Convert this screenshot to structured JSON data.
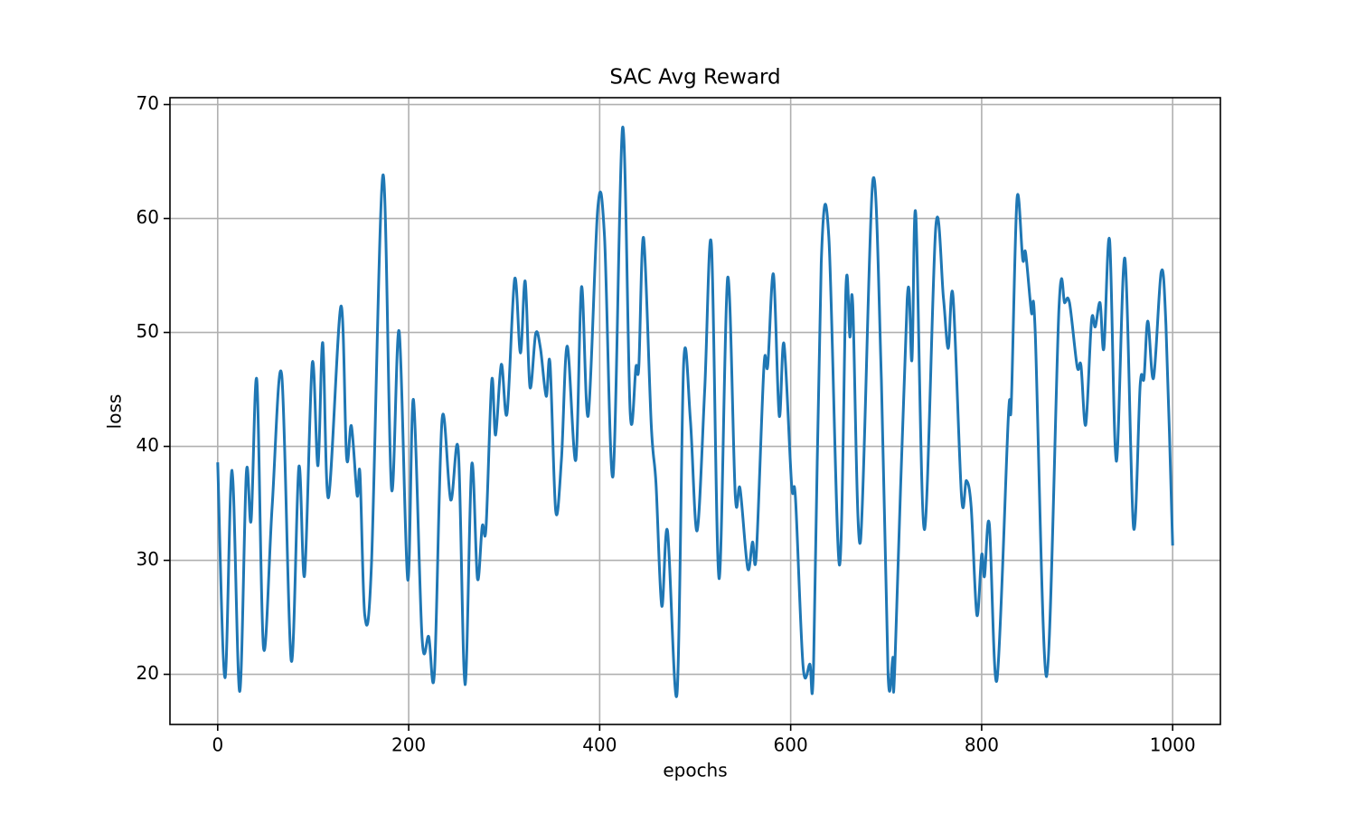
{
  "chart_data": {
    "type": "line",
    "title": "SAC Avg Reward",
    "x_label": "epochs",
    "y_label": "loss",
    "xlim": [
      -50,
      1050
    ],
    "ylim": [
      15.6,
      70.6
    ],
    "xticks": [
      0,
      200,
      400,
      600,
      800,
      1000
    ],
    "yticks": [
      20,
      30,
      40,
      50,
      60,
      70
    ],
    "grid": true,
    "x": [
      0,
      7.6,
      15,
      23,
      30,
      35,
      41,
      48,
      57,
      67,
      77,
      85,
      91,
      99,
      105,
      110,
      116,
      129,
      135,
      140,
      146,
      149,
      154,
      161,
      173,
      182,
      190,
      199,
      205,
      214,
      221,
      227,
      235,
      244,
      252,
      259,
      266,
      272,
      277,
      281,
      287,
      291,
      297,
      303,
      311,
      317,
      322,
      327,
      333,
      338,
      344,
      348,
      354,
      360,
      366,
      375,
      381,
      388,
      398,
      405,
      414,
      424,
      432,
      438,
      441,
      446,
      454,
      459,
      465,
      471,
      481,
      488,
      495,
      502,
      510,
      517,
      525,
      534,
      542,
      547,
      555,
      560,
      564,
      572,
      576,
      582,
      588,
      593,
      601,
      605,
      613,
      620,
      624,
      632,
      640,
      651,
      658,
      662,
      665,
      673,
      686,
      695,
      702,
      707,
      709,
      722,
      727,
      731,
      740,
      752,
      760,
      765,
      770,
      779,
      784,
      789,
      795,
      800,
      803,
      808,
      816,
      828,
      831,
      837,
      843,
      846,
      852,
      856,
      868,
      881,
      887,
      892,
      900,
      904,
      909,
      915,
      919,
      924,
      928,
      934,
      941,
      950,
      959,
      966,
      970,
      974,
      980,
      988,
      993,
      1000
    ],
    "series": [
      {
        "name": "SAC Avg Reward",
        "color": "#1f77b4",
        "values": [
          38.6,
          19.7,
          37.9,
          18.5,
          37.7,
          33.5,
          45.8,
          22.3,
          34.7,
          46.3,
          21.2,
          38.2,
          28.7,
          47.3,
          38.3,
          49.1,
          35.5,
          52.3,
          39,
          41.8,
          35.7,
          37.6,
          25.2,
          29.6,
          63.8,
          36.3,
          50.1,
          28.3,
          44.1,
          23.2,
          23.3,
          20.2,
          42.4,
          35.3,
          39.6,
          19.1,
          38.4,
          28.4,
          33,
          32.9,
          45.8,
          41,
          47.2,
          42.9,
          54.7,
          48.2,
          54.5,
          45.2,
          49.9,
          48.6,
          44.4,
          47.3,
          34.3,
          38.9,
          48.8,
          38.8,
          54,
          42.7,
          60.9,
          58.5,
          37.4,
          68,
          42.9,
          47,
          47,
          58.3,
          41.9,
          36.7,
          26,
          32.6,
          18.3,
          47.4,
          42.3,
          32.6,
          45,
          57.7,
          28.4,
          54.8,
          35.7,
          36.3,
          29.3,
          31.6,
          30.5,
          47,
          47.1,
          55.1,
          42.7,
          49,
          36.6,
          35.5,
          20.7,
          20.9,
          20.9,
          56.1,
          58.3,
          29.6,
          54.2,
          49.6,
          52.5,
          31.6,
          63.3,
          45.8,
          20,
          21.5,
          20.5,
          52.9,
          47.6,
          60.4,
          32.7,
          59.3,
          53,
          48.6,
          53.2,
          35.5,
          37,
          34.7,
          25.2,
          30.5,
          28.6,
          33.2,
          19.5,
          42.7,
          43.7,
          61.7,
          56.4,
          57,
          51.8,
          50.2,
          19.8,
          52.2,
          52.6,
          52.6,
          47,
          47.1,
          41.9,
          51,
          50.5,
          52.6,
          48.6,
          58.1,
          38.7,
          56.5,
          32.9,
          45.4,
          46,
          51,
          46,
          55.3,
          50.6,
          31.3
        ]
      }
    ]
  }
}
